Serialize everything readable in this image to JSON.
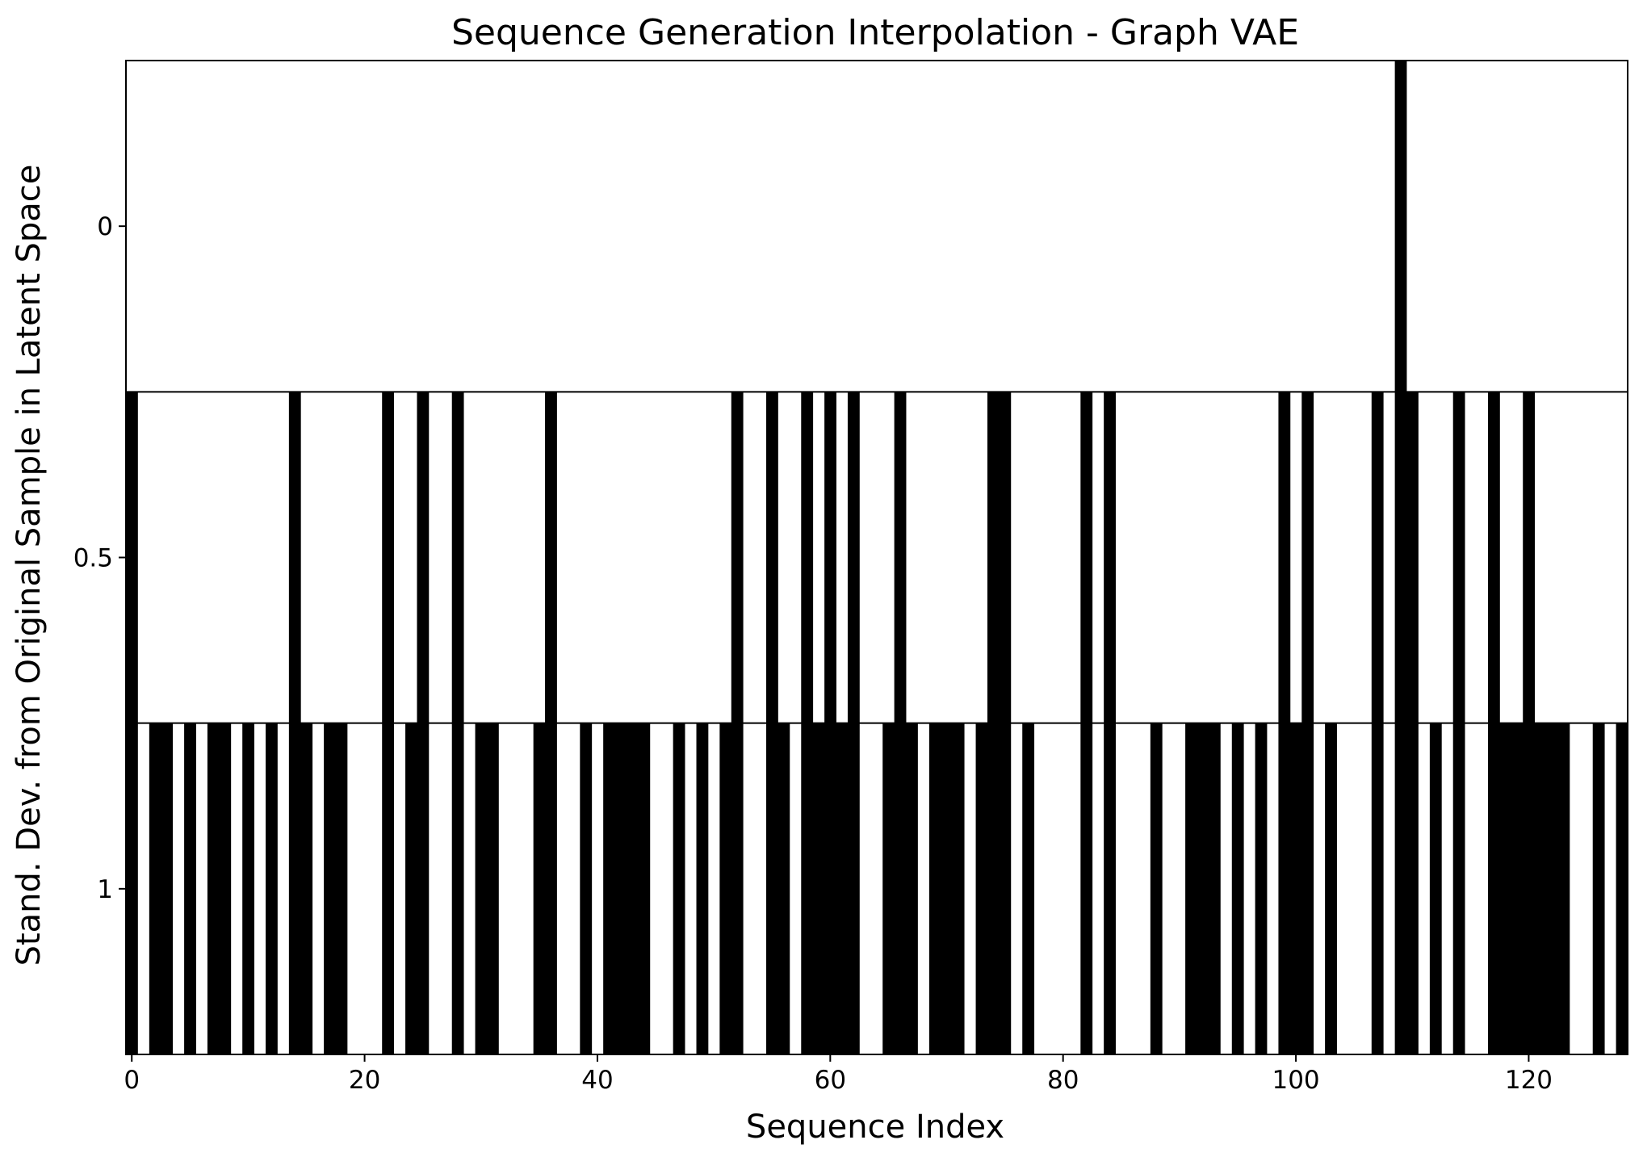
{
  "chart_data": {
    "type": "heatmap",
    "title": "Sequence Generation Interpolation - Graph VAE",
    "xlabel": "Sequence Index",
    "ylabel": "Stand. Dev. from Original Sample in Latent Space",
    "x_range": [
      -0.5,
      128.5
    ],
    "y_range": [
      1.25,
      -0.25
    ],
    "x_ticks": [
      0,
      20,
      40,
      60,
      80,
      100,
      120
    ],
    "y_ticks": [
      0,
      0.5,
      1
    ],
    "y_tick_labels": [
      "0",
      "0.5",
      "1"
    ],
    "cell_values": [
      0,
      1
    ],
    "colors": {
      "0": "#ffffff",
      "1": "#000000"
    },
    "rows": [
      {
        "y": 0,
        "black_indices": [
          109
        ]
      },
      {
        "y": 0.5,
        "black_indices": [
          0,
          14,
          22,
          25,
          28,
          36,
          52,
          55,
          58,
          60,
          62,
          66,
          74,
          75,
          82,
          84,
          99,
          101,
          107,
          109,
          110,
          114,
          117,
          120
        ]
      },
      {
        "y": 1,
        "black_indices": [
          0,
          2,
          3,
          5,
          7,
          8,
          10,
          12,
          14,
          15,
          17,
          18,
          22,
          24,
          25,
          28,
          30,
          31,
          35,
          36,
          39,
          41,
          42,
          43,
          44,
          47,
          49,
          51,
          52,
          55,
          56,
          58,
          59,
          60,
          61,
          62,
          65,
          66,
          67,
          69,
          70,
          71,
          73,
          74,
          75,
          77,
          82,
          84,
          88,
          91,
          92,
          93,
          95,
          97,
          99,
          100,
          101,
          103,
          107,
          109,
          110,
          112,
          114,
          117,
          118,
          119,
          120,
          121,
          122,
          123,
          126,
          128
        ]
      }
    ]
  }
}
